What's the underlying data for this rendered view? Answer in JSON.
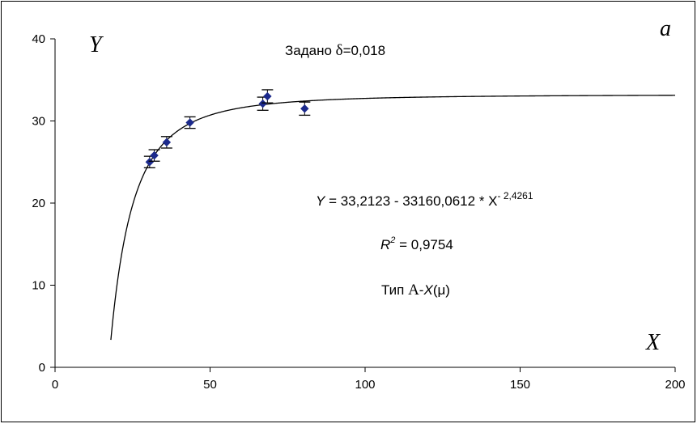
{
  "chart_data": {
    "type": "scatter",
    "panel_label": "a",
    "xlabel": "X",
    "ylabel": "Y",
    "xlim": [
      0,
      200
    ],
    "ylim": [
      0,
      40
    ],
    "xticks": [
      0,
      50,
      100,
      150,
      200
    ],
    "yticks": [
      0,
      10,
      20,
      30,
      40
    ],
    "xtick_labels": [
      "0",
      "50",
      "100",
      "150",
      "200"
    ],
    "ytick_labels": [
      "0",
      "10",
      "20",
      "30",
      "40"
    ],
    "grid": false,
    "legend": "none",
    "marker_color": "#1c2a8c",
    "points": [
      {
        "x": 30.5,
        "y": 25.0,
        "err": 0.7
      },
      {
        "x": 32.0,
        "y": 25.8,
        "err": 0.7
      },
      {
        "x": 36.0,
        "y": 27.4,
        "err": 0.7
      },
      {
        "x": 43.5,
        "y": 29.8,
        "err": 0.7
      },
      {
        "x": 67.0,
        "y": 32.1,
        "err": 0.8
      },
      {
        "x": 68.5,
        "y": 33.0,
        "err": 0.8
      },
      {
        "x": 80.5,
        "y": 31.5,
        "err": 0.8
      }
    ],
    "fit": {
      "a": 33.2123,
      "b": 33160.0612,
      "c": 2.4261,
      "x_min": 18.0,
      "x_max": 200
    },
    "annotations": {
      "given_prefix": "Задано ",
      "given_delta": "δ",
      "given_value": "=0,018",
      "eq_y": "Y",
      "eq_body": " = 33,2123  - 33160,0612 * X",
      "eq_exp": "- 2,4261",
      "r2_r": "R",
      "r2_sup": "2",
      "r2_value": " = 0,9754",
      "type_prefix": "Тип ",
      "type_A": "A",
      "type_dash": "-",
      "type_X": "X",
      "type_mu": "(μ)"
    }
  }
}
